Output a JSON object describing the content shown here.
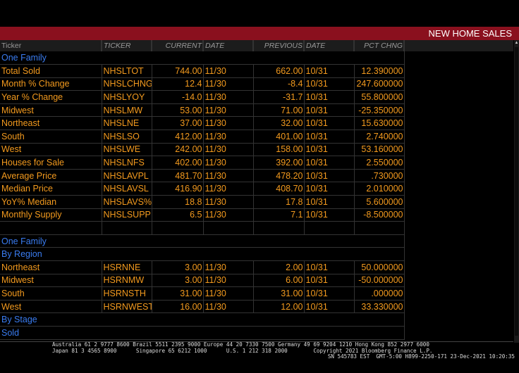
{
  "title": "NEW HOME SALES",
  "columns": [
    "Ticker",
    "TICKER",
    "CURRENT",
    "DATE",
    "PREVIOUS",
    "DATE",
    "PCT CHNG"
  ],
  "rows": [
    {
      "section": "One Family"
    },
    {
      "name": "Total Sold",
      "ticker": "NHSLTOT",
      "current": "744.00",
      "cdate": "11/30",
      "previous": "662.00",
      "pdate": "10/31",
      "pct": "12.390000"
    },
    {
      "name": "Month % Change",
      "ticker": "NHSLCHNG",
      "current": "12.4",
      "cdate": "11/30",
      "previous": "-8.4",
      "pdate": "10/31",
      "pct": "247.600000"
    },
    {
      "name": "Year % Change",
      "ticker": "NHSLYOY",
      "current": "-14.0",
      "cdate": "11/30",
      "previous": "-31.7",
      "pdate": "10/31",
      "pct": "55.800000"
    },
    {
      "name": "Midwest",
      "ticker": "NHSLMW",
      "current": "53.00",
      "cdate": "11/30",
      "previous": "71.00",
      "pdate": "10/31",
      "pct": "-25.350000"
    },
    {
      "name": "Northeast",
      "ticker": "NHSLNE",
      "current": "37.00",
      "cdate": "11/30",
      "previous": "32.00",
      "pdate": "10/31",
      "pct": "15.630000"
    },
    {
      "name": "South",
      "ticker": "NHSLSO",
      "current": "412.00",
      "cdate": "11/30",
      "previous": "401.00",
      "pdate": "10/31",
      "pct": "2.740000"
    },
    {
      "name": "West",
      "ticker": "NHSLWE",
      "current": "242.00",
      "cdate": "11/30",
      "previous": "158.00",
      "pdate": "10/31",
      "pct": "53.160000"
    },
    {
      "name": "Houses for Sale",
      "ticker": "NHSLNFS",
      "current": "402.00",
      "cdate": "11/30",
      "previous": "392.00",
      "pdate": "10/31",
      "pct": "2.550000"
    },
    {
      "name": "Average Price",
      "ticker": "NHSLAVPL",
      "current": "481.70",
      "cdate": "11/30",
      "previous": "478.20",
      "pdate": "10/31",
      "pct": ".730000"
    },
    {
      "name": "Median Price",
      "ticker": "NHSLAVSL",
      "current": "416.90",
      "cdate": "11/30",
      "previous": "408.70",
      "pdate": "10/31",
      "pct": "2.010000"
    },
    {
      "name": "YoY% Median",
      "ticker": "NHSLAVS%",
      "current": "18.8",
      "cdate": "11/30",
      "previous": "17.8",
      "pdate": "10/31",
      "pct": "5.600000"
    },
    {
      "name": "Monthly Supply",
      "ticker": "NHSLSUPP",
      "current": "6.5",
      "cdate": "11/30",
      "previous": "7.1",
      "pdate": "10/31",
      "pct": "-8.500000"
    },
    {
      "name": "",
      "ticker": "",
      "current": "",
      "cdate": "",
      "previous": "",
      "pdate": "",
      "pct": ""
    },
    {
      "section": "One Family"
    },
    {
      "section": "By Region"
    },
    {
      "name": "Northeast",
      "ticker": "HSRNNE",
      "current": "3.00",
      "cdate": "11/30",
      "previous": "2.00",
      "pdate": "10/31",
      "pct": "50.000000"
    },
    {
      "name": "Midwest",
      "ticker": "HSRNMW",
      "current": "3.00",
      "cdate": "11/30",
      "previous": "6.00",
      "pdate": "10/31",
      "pct": "-50.000000"
    },
    {
      "name": "South",
      "ticker": "HSRNSTH",
      "current": "31.00",
      "cdate": "11/30",
      "previous": "31.00",
      "pdate": "10/31",
      "pct": ".000000"
    },
    {
      "name": "West",
      "ticker": "HSRNWEST",
      "current": "16.00",
      "cdate": "11/30",
      "previous": "12.00",
      "pdate": "10/31",
      "pct": "33.330000"
    },
    {
      "section": "By Stage"
    },
    {
      "section": "Sold"
    }
  ],
  "footer": {
    "line1": "Australia 61 2 9777 8600 Brazil 5511 2395 9000 Europe 44 20 7330 7500 Germany 49 69 9204 1210 Hong Kong 852 2977 6000",
    "line2": "Japan 81 3 4565 8900      Singapore 65 6212 1000      U.S. 1 212 318 2000        Copyright 2021 Bloomberg Finance L.P.",
    "line3": "SN 545783 EST  GMT-5:00 H899-2250-171 23-Dec-2021 10:20:35"
  },
  "colors": {
    "title_bar": "#8a101e",
    "value": "#f39a1e",
    "section": "#3a7cf0"
  }
}
